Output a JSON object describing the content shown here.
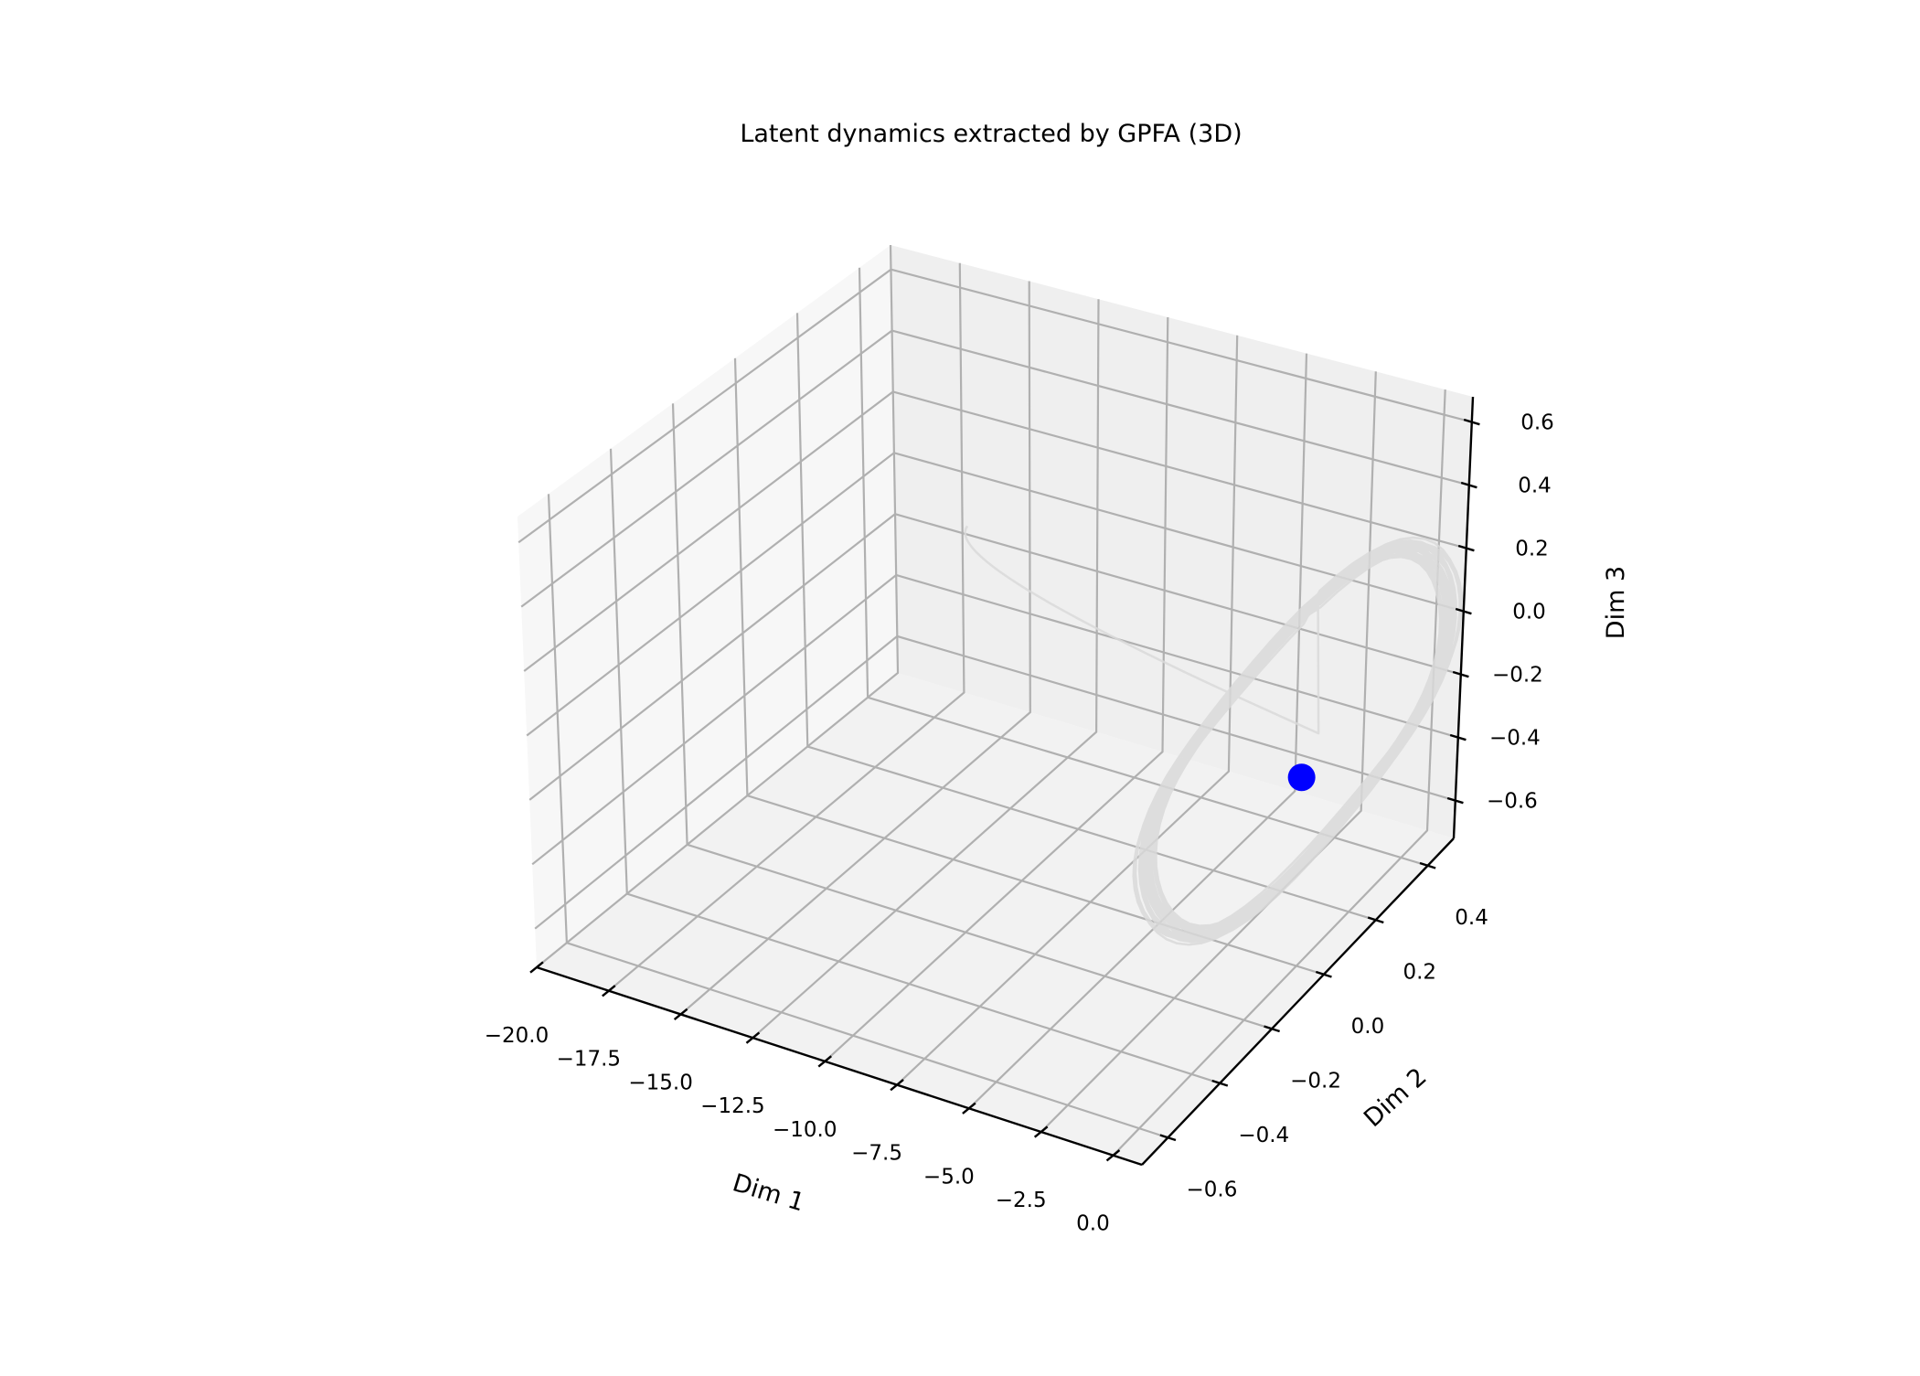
{
  "chart_data": {
    "type": "line",
    "projection": "3d",
    "title": "Latent dynamics extracted by GPFA (3D)",
    "xlabel": "Dim 1",
    "ylabel": "Dim 2",
    "zlabel": "Dim 3",
    "xlim": [
      -20.0,
      1.0
    ],
    "ylim": [
      -0.7,
      0.5
    ],
    "zlim": [
      -0.72,
      0.68
    ],
    "xticks": [
      "−20.0",
      "−17.5",
      "−15.0",
      "−12.5",
      "−10.0",
      "−7.5",
      "−5.0",
      "−2.5",
      "0.0"
    ],
    "yticks": [
      "−0.6",
      "−0.4",
      "−0.2",
      "0.0",
      "0.2",
      "0.4"
    ],
    "zticks": [
      "−0.6",
      "−0.4",
      "−0.2",
      "0.0",
      "0.2",
      "0.4",
      "0.6"
    ],
    "grid": true,
    "trajectory": {
      "color": "#d9d9d9",
      "description": "many overlapping elliptical loops of the latent trajectory plus an initial transient from far negative Dim 1",
      "loop_center": [
        0.0,
        0.0,
        0.0
      ],
      "dim1_amplitude": 0.7,
      "dim2_amplitude": 0.55,
      "dim3_amplitude": 0.5,
      "transient_start": [
        -14.0,
        0.2,
        0.15
      ]
    },
    "marker": {
      "color": "#0000ff",
      "point": [
        0.6,
        -0.05,
        -0.05
      ]
    }
  }
}
